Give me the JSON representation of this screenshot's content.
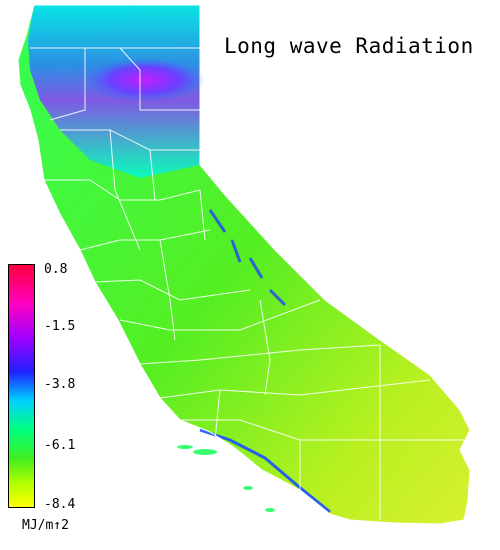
{
  "title": "Long wave Radiation",
  "legend": {
    "ticks": [
      "0.8",
      "-1.5",
      "-3.8",
      "-6.1",
      "-8.4"
    ],
    "units": "MJ/m↑2",
    "colors": [
      "#ff0044",
      "#ff00ff",
      "#2020ff",
      "#00ffff",
      "#00ff66",
      "#44ee22",
      "#aaff00",
      "#ffff00"
    ]
  }
}
